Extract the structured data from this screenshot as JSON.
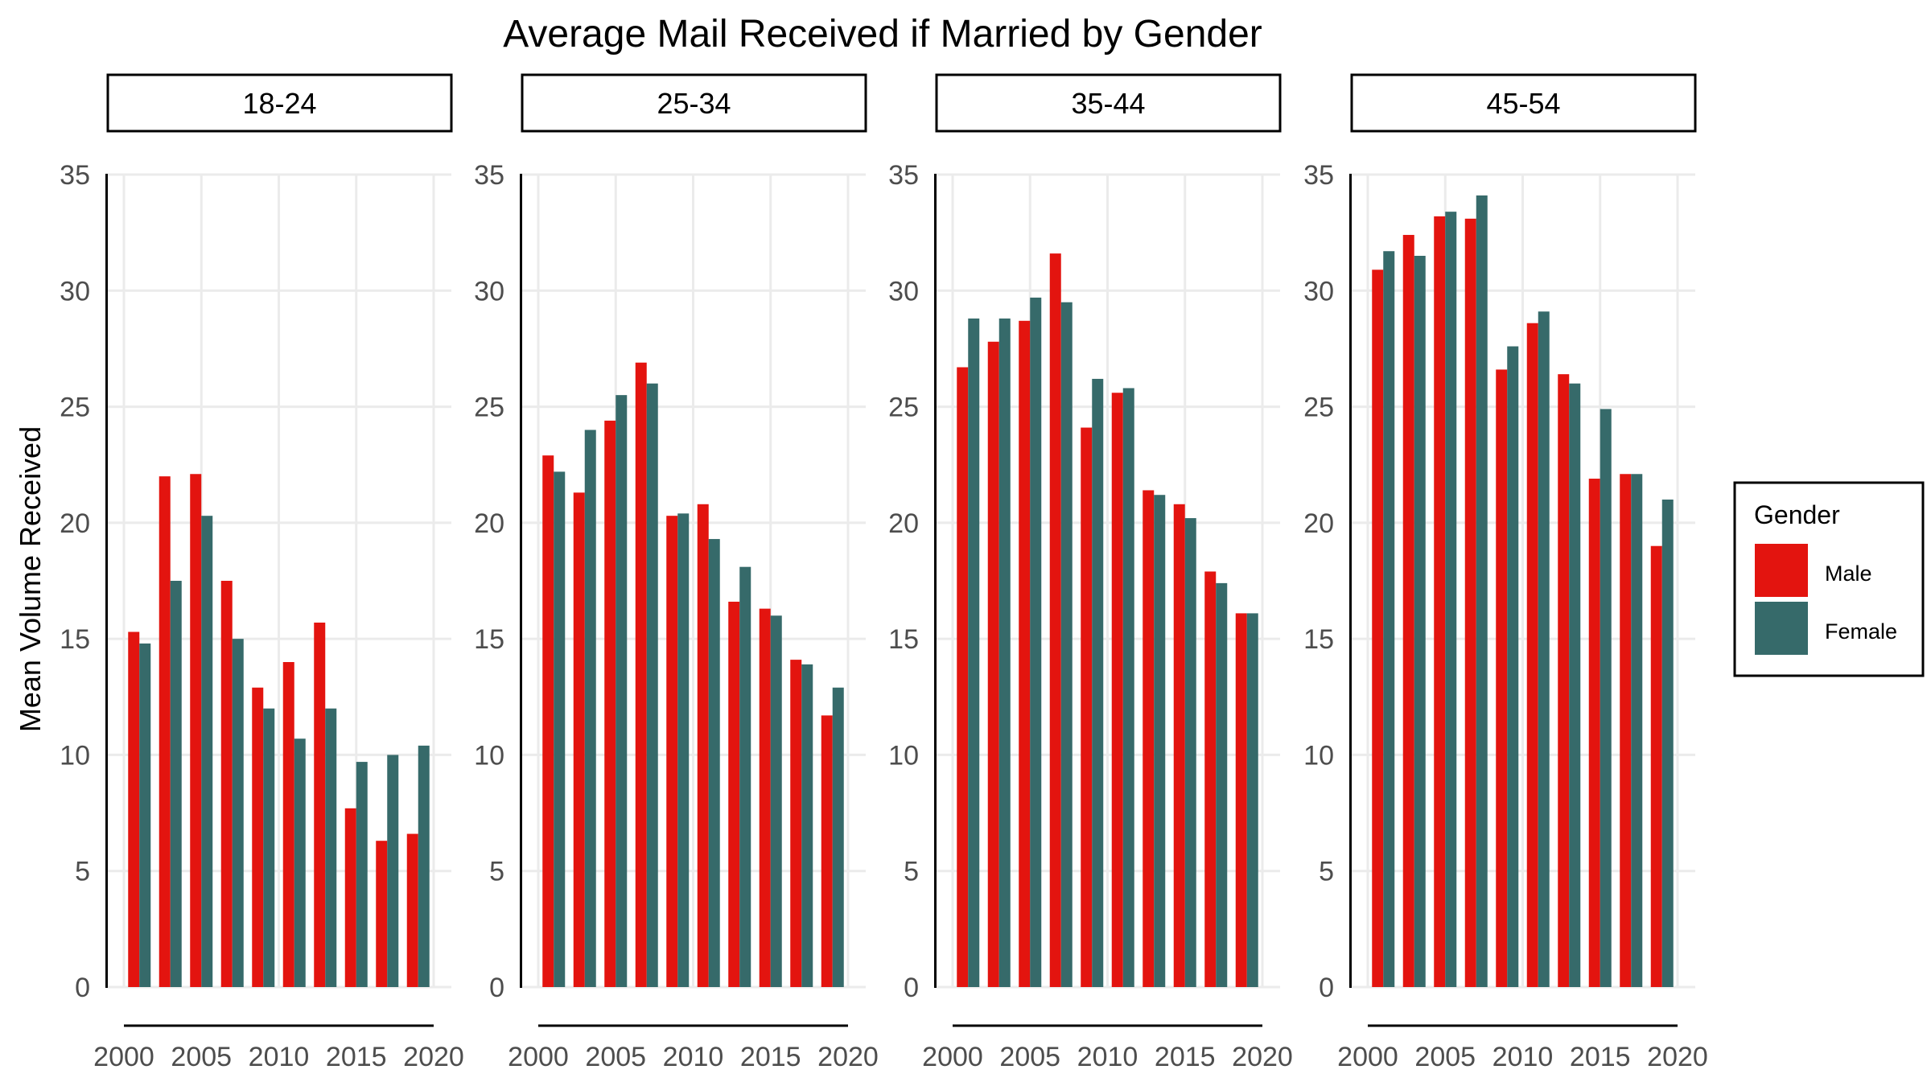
{
  "chart_data": {
    "type": "bar",
    "title": "Average Mail Received if Married by Gender",
    "xlabel": "",
    "ylabel": "Mean Volume Received",
    "xlim": [
      2000,
      2020
    ],
    "ylim": [
      0,
      35
    ],
    "x_ticks": [
      2000,
      2005,
      2010,
      2015,
      2020
    ],
    "y_ticks": [
      0,
      5,
      10,
      15,
      20,
      25,
      30,
      35
    ],
    "grid": true,
    "legend": {
      "title": "Gender",
      "position": "right",
      "entries": [
        {
          "name": "Male",
          "color": "#e3140f"
        },
        {
          "name": "Female",
          "color": "#366a6a"
        }
      ]
    },
    "x": [
      2001,
      2003,
      2005,
      2007,
      2009,
      2011,
      2013,
      2015,
      2017,
      2019
    ],
    "panels": [
      {
        "label": "18-24",
        "series": [
          {
            "name": "Male",
            "values": [
              15.3,
              22.0,
              22.1,
              17.5,
              12.9,
              14.0,
              15.7,
              7.7,
              6.3,
              6.6
            ]
          },
          {
            "name": "Female",
            "values": [
              14.8,
              17.5,
              20.3,
              15.0,
              12.0,
              10.7,
              12.0,
              9.7,
              10.0,
              10.4
            ]
          }
        ]
      },
      {
        "label": "25-34",
        "series": [
          {
            "name": "Male",
            "values": [
              22.9,
              21.3,
              24.4,
              26.9,
              20.3,
              20.8,
              16.6,
              16.3,
              14.1,
              11.7
            ]
          },
          {
            "name": "Female",
            "values": [
              22.2,
              24.0,
              25.5,
              26.0,
              20.4,
              19.3,
              18.1,
              16.0,
              13.9,
              12.9
            ]
          }
        ]
      },
      {
        "label": "35-44",
        "series": [
          {
            "name": "Male",
            "values": [
              26.7,
              27.8,
              28.7,
              31.6,
              24.1,
              25.6,
              21.4,
              20.8,
              17.9,
              16.1
            ]
          },
          {
            "name": "Female",
            "values": [
              28.8,
              28.8,
              29.7,
              29.5,
              26.2,
              25.8,
              21.2,
              20.2,
              17.4,
              16.1
            ]
          }
        ]
      },
      {
        "label": "45-54",
        "series": [
          {
            "name": "Male",
            "values": [
              30.9,
              32.4,
              33.2,
              33.1,
              26.6,
              28.6,
              26.4,
              21.9,
              22.1,
              19.0
            ]
          },
          {
            "name": "Female",
            "values": [
              31.7,
              31.5,
              33.4,
              34.1,
              27.6,
              29.1,
              26.0,
              24.9,
              22.1,
              21.0
            ]
          }
        ]
      }
    ]
  }
}
